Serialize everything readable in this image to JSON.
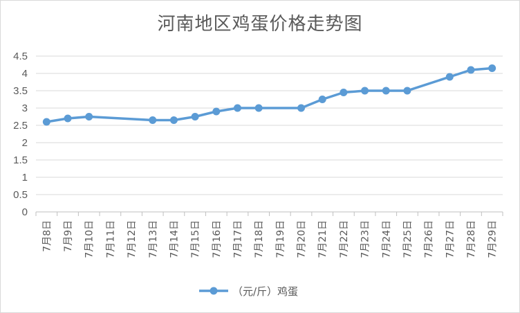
{
  "chart_data": {
    "type": "line",
    "title": "河南地区鸡蛋价格走势图",
    "xlabel": "",
    "ylabel": "",
    "ylim": [
      0,
      4.5
    ],
    "yticks": [
      "0",
      "0.5",
      "1",
      "1.5",
      "2",
      "2.5",
      "3",
      "3.5",
      "4",
      "4.5"
    ],
    "grid": true,
    "legend_position": "bottom",
    "categories": [
      "7月8日",
      "7月9日",
      "7月10日",
      "7月11日",
      "7月12日",
      "7月13日",
      "7月14日",
      "7月15日",
      "7月16日",
      "7月17日",
      "7月18日",
      "7月19日",
      "7月20日",
      "7月21日",
      "7月22日",
      "7月23日",
      "7月24日",
      "7月25日",
      "7月26日",
      "7月27日",
      "7月28日",
      "7月29日"
    ],
    "series": [
      {
        "name": "（元/斤）鸡蛋",
        "color": "#5b9bd5",
        "values": [
          2.6,
          2.7,
          2.75,
          null,
          null,
          2.65,
          2.65,
          2.75,
          2.9,
          3.0,
          3.0,
          null,
          3.0,
          3.25,
          3.45,
          3.5,
          3.5,
          3.5,
          null,
          3.9,
          4.1,
          4.15
        ]
      }
    ]
  }
}
